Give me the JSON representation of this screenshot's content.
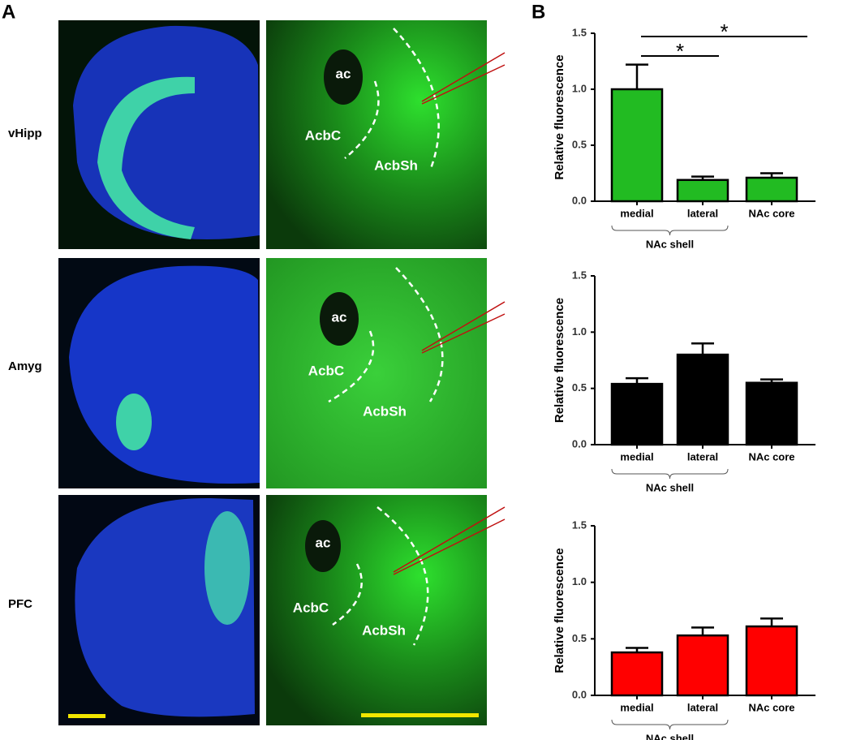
{
  "panels": {
    "a": "A",
    "b": "B"
  },
  "rows": [
    "vHipp",
    "Amyg",
    "PFC"
  ],
  "image_labels": {
    "ac": "ac",
    "core": "AcbC",
    "shell": "AcbSh"
  },
  "chart_data": [
    {
      "type": "bar",
      "ylabel": "Relative fluorescence",
      "categories": [
        "medial",
        "lateral",
        "NAc core"
      ],
      "values": [
        1.0,
        0.19,
        0.21
      ],
      "errors": [
        0.22,
        0.03,
        0.04
      ],
      "color": "#22bb22",
      "ylim": [
        0,
        1.5
      ],
      "yticks": [
        {
          "value": 0,
          "label": "0.0"
        },
        {
          "value": 0.5,
          "label": "0.5"
        },
        {
          "value": 1,
          "label": "1.0"
        },
        {
          "value": 1.5,
          "label": "1.5"
        }
      ],
      "group": {
        "label": "NAc shell",
        "categories": [
          "medial",
          "lateral"
        ]
      },
      "significance": [
        {
          "label": "*",
          "categories": [
            "medial",
            "lateral"
          ]
        },
        {
          "label": "*",
          "categories": [
            "medial",
            "NAc core"
          ]
        }
      ]
    },
    {
      "type": "bar",
      "ylabel": "Relative fluorescence",
      "categories": [
        "medial",
        "lateral",
        "NAc core"
      ],
      "values": [
        0.54,
        0.8,
        0.55
      ],
      "errors": [
        0.05,
        0.1,
        0.03
      ],
      "color": "#000000",
      "ylim": [
        0,
        1.5
      ],
      "yticks": [
        {
          "value": 0,
          "label": "0.0"
        },
        {
          "value": 0.5,
          "label": "0.5"
        },
        {
          "value": 1,
          "label": "1.0"
        },
        {
          "value": 1.5,
          "label": "1.5"
        }
      ],
      "group": {
        "label": "NAc shell",
        "categories": [
          "medial",
          "lateral"
        ]
      }
    },
    {
      "type": "bar",
      "ylabel": "Relative fluorescence",
      "categories": [
        "medial",
        "lateral",
        "NAc core"
      ],
      "values": [
        0.38,
        0.53,
        0.61
      ],
      "errors": [
        0.04,
        0.07,
        0.07
      ],
      "color": "#ff0000",
      "ylim": [
        0,
        1.5
      ],
      "yticks": [
        {
          "value": 0,
          "label": "0.0"
        },
        {
          "value": 0.5,
          "label": "0.5"
        },
        {
          "value": 1,
          "label": "1.0"
        },
        {
          "value": 1.5,
          "label": "1.5"
        }
      ],
      "group": {
        "label": "NAc shell",
        "categories": [
          "medial",
          "lateral"
        ]
      }
    }
  ]
}
